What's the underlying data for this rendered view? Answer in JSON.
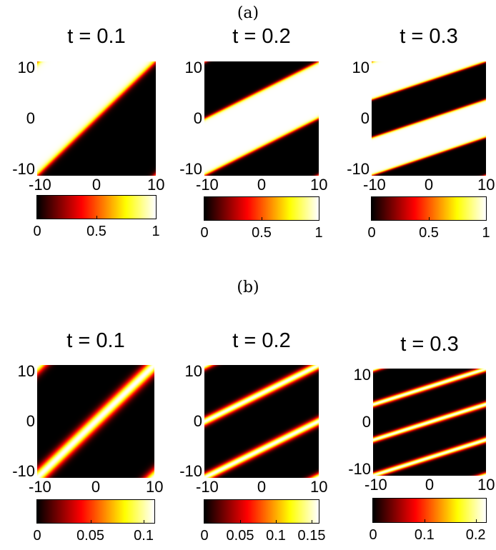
{
  "chart_data": [
    {
      "type": "heatmap",
      "group": "(a)",
      "title": "t = 0.1",
      "profile": "sharp",
      "stripes": 1,
      "stripe_count_bands": 2,
      "x_ticks": [
        "-10",
        "0",
        "10"
      ],
      "y_ticks": [
        "10",
        "0",
        "-10"
      ],
      "xlim": [
        -10,
        10
      ],
      "ylim": [
        -10,
        10
      ],
      "colorbar": {
        "min": 0,
        "max": 1,
        "ticks": [
          "0",
          "0.5",
          "1"
        ],
        "tick_values": [
          0,
          0.5,
          1
        ]
      },
      "colormap": "hot"
    },
    {
      "type": "heatmap",
      "group": "(a)",
      "title": "t = 0.2",
      "profile": "sharp",
      "stripes": 2,
      "x_ticks": [
        "-10",
        "0",
        "10"
      ],
      "y_ticks": [
        "10",
        "0",
        "-10"
      ],
      "xlim": [
        -10,
        10
      ],
      "ylim": [
        -10,
        10
      ],
      "colorbar": {
        "min": 0,
        "max": 1,
        "ticks": [
          "0",
          "0.5",
          "1"
        ],
        "tick_values": [
          0,
          0.5,
          1
        ]
      },
      "colormap": "hot"
    },
    {
      "type": "heatmap",
      "group": "(a)",
      "title": "t = 0.3",
      "profile": "sharp",
      "stripes": 3,
      "x_ticks": [
        "-10",
        "0",
        "10"
      ],
      "y_ticks": [
        "10",
        "0",
        "-10"
      ],
      "xlim": [
        -10,
        10
      ],
      "ylim": [
        -10,
        10
      ],
      "colorbar": {
        "min": 0,
        "max": 1,
        "ticks": [
          "0",
          "0.5",
          "1"
        ],
        "tick_values": [
          0,
          0.5,
          1
        ]
      },
      "colormap": "hot"
    },
    {
      "type": "heatmap",
      "group": "(b)",
      "title": "t = 0.1",
      "profile": "thin",
      "stripes": 1,
      "x_ticks": [
        "-10",
        "0",
        "10"
      ],
      "y_ticks": [
        "10",
        "0",
        "-10"
      ],
      "xlim": [
        -10,
        10
      ],
      "ylim": [
        -10,
        10
      ],
      "colorbar": {
        "min": 0,
        "max": 0.11,
        "ticks": [
          "0",
          "0.05",
          "0.1"
        ],
        "tick_values": [
          0,
          0.05,
          0.1
        ]
      },
      "colormap": "hot"
    },
    {
      "type": "heatmap",
      "group": "(b)",
      "title": "t = 0.2",
      "profile": "thin",
      "stripes": 2,
      "x_ticks": [
        "-10",
        "0",
        "10"
      ],
      "y_ticks": [
        "10",
        "0",
        "-10"
      ],
      "xlim": [
        -10,
        10
      ],
      "ylim": [
        -10,
        10
      ],
      "colorbar": {
        "min": 0,
        "max": 0.16,
        "ticks": [
          "0",
          "0.05",
          "0.1",
          "0.15"
        ],
        "tick_values": [
          0,
          0.05,
          0.1,
          0.15
        ]
      },
      "colormap": "hot"
    },
    {
      "type": "heatmap",
      "group": "(b)",
      "title": "t = 0.3",
      "profile": "thin",
      "stripes": 3,
      "x_ticks": [
        "-10",
        "0",
        "10"
      ],
      "y_ticks": [
        "10",
        "0",
        "-10"
      ],
      "xlim": [
        -10,
        10
      ],
      "ylim": [
        -10,
        10
      ],
      "colorbar": {
        "min": 0,
        "max": 0.22,
        "ticks": [
          "0",
          "0.1",
          "0.2"
        ],
        "tick_values": [
          0,
          0.1,
          0.2
        ]
      },
      "colormap": "hot"
    }
  ],
  "labels": {
    "group_a": "(a)",
    "group_b": "(b)"
  }
}
